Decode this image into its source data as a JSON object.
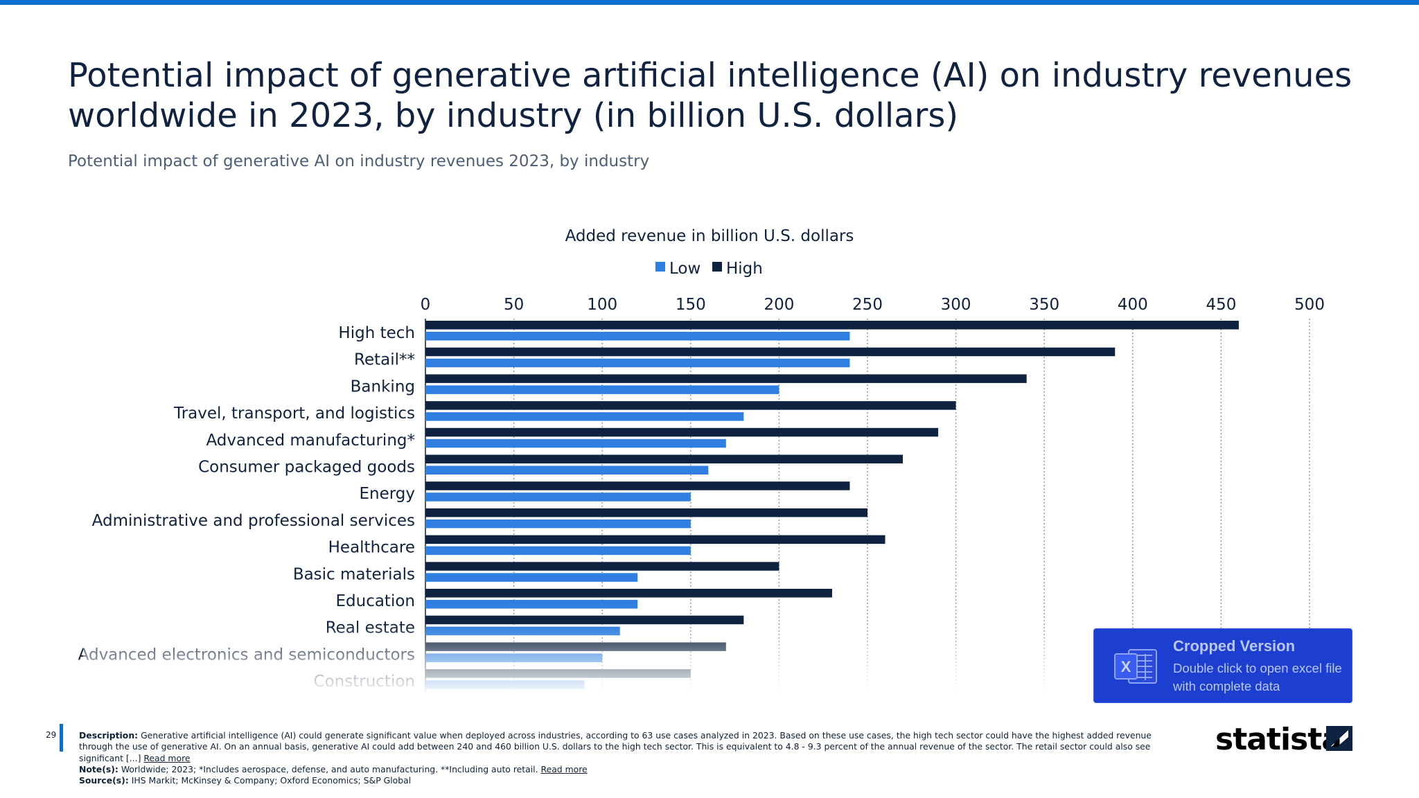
{
  "page": {
    "title": "Potential impact of generative artificial intelligence (AI) on industry revenues worldwide in 2023, by industry (in billion U.S. dollars)",
    "subtitle": "Potential impact of generative AI on industry revenues 2023, by industry",
    "page_number": "29"
  },
  "colors": {
    "accent": "#0a6fd0",
    "low": "#2f7ee0",
    "high": "#0f2240"
  },
  "footer": {
    "description_label": "Description:",
    "description": "Generative artificial intelligence (AI) could generate significant value when deployed across industries, according to 63 use cases analyzed in 2023. Based on these use cases, the high tech sector could have the highest added revenue through the use of generative AI. On an annual basis, generative AI could add between 240 and 460 billion U.S. dollars to the high tech sector. This is equivalent to 4.8 - 9.3 percent of the annual revenue of the sector. The retail sector could also see significant [...]",
    "read_more": "Read more",
    "notes_label": "Note(s):",
    "notes": "Worldwide; 2023; *Includes aerospace, defense, and auto manufacturing. **Including auto retail.",
    "sources_label": "Source(s):",
    "sources": "IHS Markit; McKinsey & Company; Oxford Economics; S&P Global"
  },
  "logo": {
    "text": "statista"
  },
  "cropped": {
    "title": "Cropped Version",
    "description": "Double click to open excel file with complete data",
    "icon": "excel-icon"
  },
  "chart_data": {
    "type": "bar",
    "orientation": "horizontal",
    "title": "Added revenue in billion U.S. dollars",
    "categories": [
      "High tech",
      "Retail**",
      "Banking",
      "Travel, transport, and logistics",
      "Advanced manufacturing*",
      "Consumer packaged goods",
      "Energy",
      "Administrative and professional services",
      "Healthcare",
      "Basic materials",
      "Education",
      "Real estate",
      "Advanced electronics and semiconductors",
      "Construction"
    ],
    "series": [
      {
        "name": "Low",
        "values": [
          240,
          240,
          200,
          180,
          170,
          160,
          150,
          150,
          150,
          120,
          120,
          110,
          100,
          90
        ]
      },
      {
        "name": "High",
        "values": [
          460,
          390,
          340,
          300,
          290,
          270,
          240,
          250,
          260,
          200,
          230,
          180,
          170,
          150
        ]
      }
    ],
    "xlim": [
      0,
      500
    ],
    "ticks": [
      0,
      50,
      100,
      150,
      200,
      250,
      300,
      350,
      400,
      450,
      500
    ],
    "grid": true,
    "legend": "top-center"
  }
}
